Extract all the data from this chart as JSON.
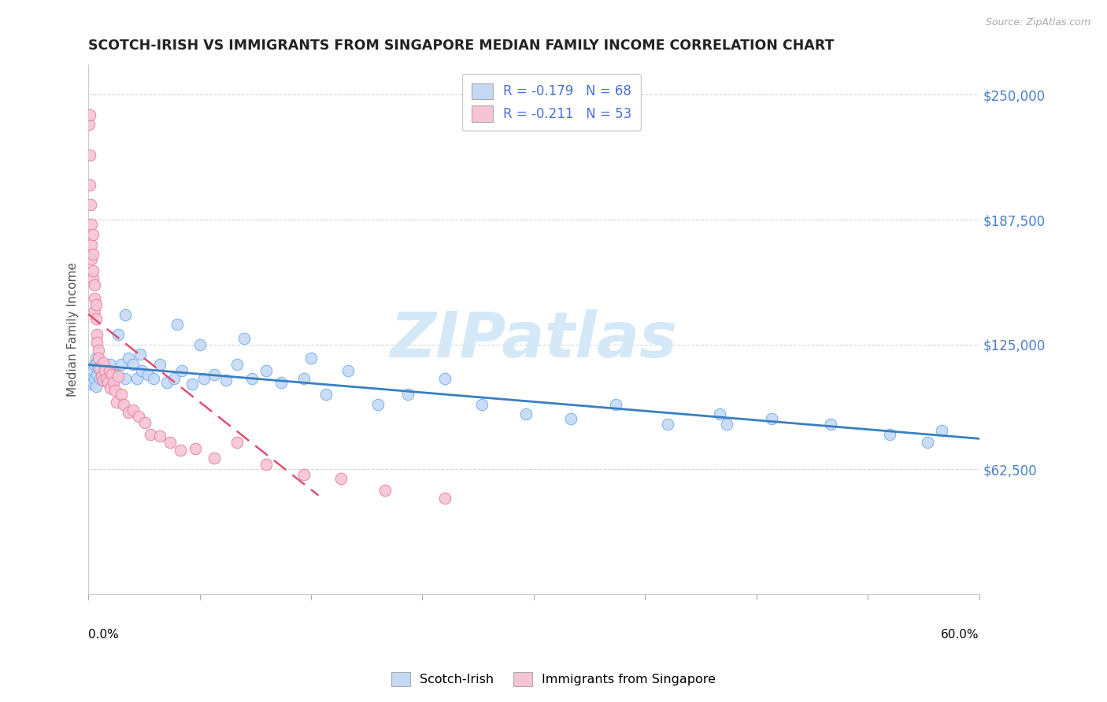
{
  "title": "SCOTCH-IRISH VS IMMIGRANTS FROM SINGAPORE MEDIAN FAMILY INCOME CORRELATION CHART",
  "source": "Source: ZipAtlas.com",
  "ylabel": "Median Family Income",
  "y_ticks": [
    0,
    62500,
    125000,
    187500,
    250000
  ],
  "y_tick_labels_right": [
    "",
    "$62,500",
    "$125,000",
    "$187,500",
    "$250,000"
  ],
  "x_min": 0.0,
  "x_max": 0.6,
  "y_min": 0,
  "y_max": 265000,
  "legend_r1": "R = -0.179",
  "legend_n1": "N = 68",
  "legend_r2": "R = -0.211",
  "legend_n2": "N = 53",
  "color_blue_fill": "#c5d9f5",
  "color_blue_edge": "#6aaae8",
  "color_pink_fill": "#f5c5d5",
  "color_pink_edge": "#e87898",
  "line_blue": "#3a7fc1",
  "line_pink": "#e05070",
  "watermark_color": "#d5e8f8",
  "label_blue": "Scotch-Irish",
  "label_pink": "Immigrants from Singapore",
  "scotch_irish_x": [
    0.001,
    0.002,
    0.002,
    0.003,
    0.003,
    0.004,
    0.004,
    0.005,
    0.005,
    0.006,
    0.006,
    0.007,
    0.008,
    0.009,
    0.01,
    0.01,
    0.011,
    0.012,
    0.013,
    0.014,
    0.015,
    0.016,
    0.018,
    0.02,
    0.022,
    0.025,
    0.027,
    0.03,
    0.033,
    0.036,
    0.04,
    0.044,
    0.048,
    0.053,
    0.058,
    0.063,
    0.07,
    0.078,
    0.085,
    0.093,
    0.1,
    0.11,
    0.12,
    0.13,
    0.145,
    0.16,
    0.175,
    0.195,
    0.215,
    0.24,
    0.265,
    0.295,
    0.325,
    0.355,
    0.39,
    0.425,
    0.46,
    0.5,
    0.54,
    0.575,
    0.025,
    0.035,
    0.06,
    0.075,
    0.105,
    0.15,
    0.43,
    0.565
  ],
  "scotch_irish_y": [
    108000,
    110000,
    105000,
    112000,
    106000,
    115000,
    108000,
    118000,
    104000,
    116000,
    110000,
    113000,
    108000,
    115000,
    111000,
    107000,
    114000,
    108000,
    112000,
    106000,
    115000,
    108000,
    110000,
    130000,
    115000,
    108000,
    118000,
    115000,
    108000,
    112000,
    110000,
    108000,
    115000,
    106000,
    108000,
    112000,
    105000,
    108000,
    110000,
    107000,
    115000,
    108000,
    112000,
    106000,
    108000,
    100000,
    112000,
    95000,
    100000,
    108000,
    95000,
    90000,
    88000,
    95000,
    85000,
    90000,
    88000,
    85000,
    80000,
    82000,
    140000,
    120000,
    135000,
    125000,
    128000,
    118000,
    85000,
    76000
  ],
  "singapore_x": [
    0.0005,
    0.001,
    0.001,
    0.001,
    0.0015,
    0.002,
    0.002,
    0.002,
    0.003,
    0.003,
    0.003,
    0.003,
    0.004,
    0.004,
    0.004,
    0.005,
    0.005,
    0.006,
    0.006,
    0.007,
    0.007,
    0.008,
    0.009,
    0.01,
    0.01,
    0.011,
    0.012,
    0.013,
    0.014,
    0.015,
    0.016,
    0.017,
    0.018,
    0.019,
    0.02,
    0.022,
    0.024,
    0.027,
    0.03,
    0.034,
    0.038,
    0.042,
    0.048,
    0.055,
    0.062,
    0.072,
    0.085,
    0.1,
    0.12,
    0.145,
    0.17,
    0.2,
    0.24
  ],
  "singapore_y": [
    235000,
    240000,
    220000,
    205000,
    195000,
    185000,
    175000,
    168000,
    170000,
    180000,
    158000,
    162000,
    148000,
    155000,
    142000,
    138000,
    145000,
    130000,
    126000,
    122000,
    118000,
    113000,
    109000,
    116000,
    107000,
    112000,
    108000,
    106000,
    112000,
    103000,
    110000,
    106000,
    102000,
    96000,
    109000,
    100000,
    95000,
    91000,
    92000,
    89000,
    86000,
    80000,
    79000,
    76000,
    72000,
    73000,
    68000,
    76000,
    65000,
    60000,
    58000,
    52000,
    48000
  ],
  "singapore_trend_x_max": 0.155
}
